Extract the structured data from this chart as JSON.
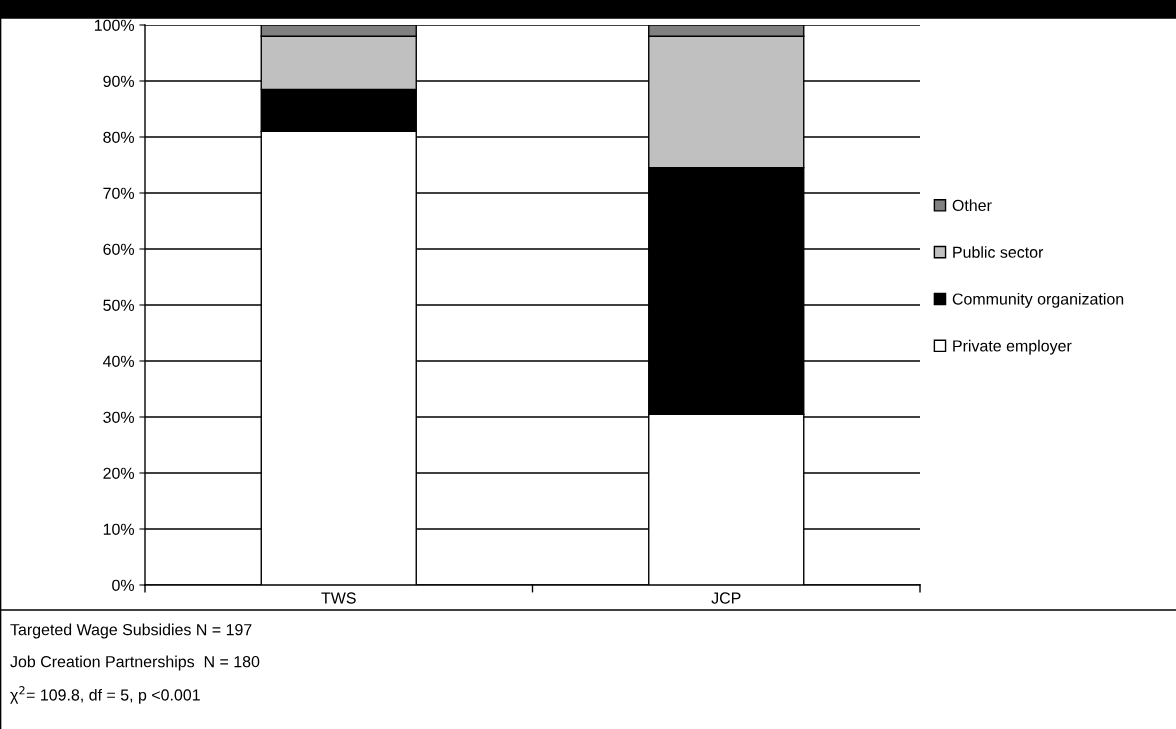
{
  "chart_data": {
    "type": "bar",
    "stacked": true,
    "categories": [
      "TWS",
      "JCP"
    ],
    "series": [
      {
        "name": "Private employer",
        "color": "#ffffff",
        "values": [
          81,
          30.5
        ]
      },
      {
        "name": "Community organization",
        "color": "#000000",
        "values": [
          7.5,
          44
        ]
      },
      {
        "name": "Public sector",
        "color": "#c0c0c0",
        "values": [
          9.5,
          23.5
        ]
      },
      {
        "name": "Other",
        "color": "#808080",
        "values": [
          2,
          2
        ]
      }
    ],
    "ylim": [
      0,
      100
    ],
    "yticks": [
      {
        "value": 0,
        "label": "0%"
      },
      {
        "value": 10,
        "label": "10%"
      },
      {
        "value": 20,
        "label": "20%"
      },
      {
        "value": 30,
        "label": "30%"
      },
      {
        "value": 40,
        "label": "40%"
      },
      {
        "value": 50,
        "label": "50%"
      },
      {
        "value": 60,
        "label": "60%"
      },
      {
        "value": 70,
        "label": "70%"
      },
      {
        "value": 80,
        "label": "80%"
      },
      {
        "value": 90,
        "label": "90%"
      },
      {
        "value": 100,
        "label": "100%"
      }
    ],
    "grid": "y",
    "legend": "right",
    "annotations": [
      "Targeted Wage Subsidies N = 197",
      "Job Creation Partnerships  N = 180",
      "χ$^{2}$= 109.8, df = 5, p <0.001"
    ]
  }
}
